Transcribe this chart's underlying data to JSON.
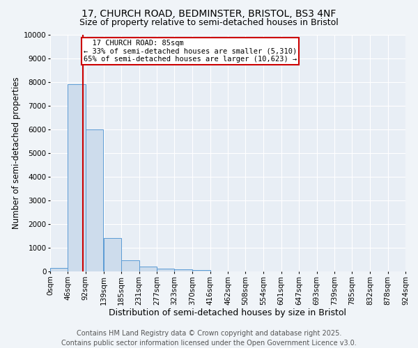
{
  "title_line1": "17, CHURCH ROAD, BEDMINSTER, BRISTOL, BS3 4NF",
  "title_line2": "Size of property relative to semi-detached houses in Bristol",
  "xlabel": "Distribution of semi-detached houses by size in Bristol",
  "ylabel": "Number of semi-detached properties",
  "property_label": "17 CHURCH ROAD: 85sqm",
  "pct_smaller": 33,
  "pct_larger": 65,
  "count_smaller": 5310,
  "count_larger": 10623,
  "bin_edges": [
    0,
    46,
    92,
    139,
    185,
    231,
    277,
    323,
    370,
    416,
    462,
    508,
    554,
    601,
    647,
    693,
    739,
    785,
    832,
    878,
    924
  ],
  "bin_labels": [
    "0sqm",
    "46sqm",
    "92sqm",
    "139sqm",
    "185sqm",
    "231sqm",
    "277sqm",
    "323sqm",
    "370sqm",
    "416sqm",
    "462sqm",
    "508sqm",
    "554sqm",
    "601sqm",
    "647sqm",
    "693sqm",
    "739sqm",
    "785sqm",
    "832sqm",
    "878sqm",
    "924sqm"
  ],
  "bar_heights": [
    150,
    7900,
    6000,
    1400,
    480,
    220,
    130,
    90,
    50,
    10,
    5,
    3,
    2,
    1,
    1,
    0,
    0,
    0,
    0,
    0
  ],
  "bar_color": "#cddcec",
  "bar_edge_color": "#5b9bd5",
  "vline_color": "#cc0000",
  "vline_x": 85,
  "annotation_box_color": "#cc0000",
  "footer_line1": "Contains HM Land Registry data © Crown copyright and database right 2025.",
  "footer_line2": "Contains public sector information licensed under the Open Government Licence v3.0.",
  "ylim": [
    0,
    10000
  ],
  "yticks": [
    0,
    1000,
    2000,
    3000,
    4000,
    5000,
    6000,
    7000,
    8000,
    9000,
    10000
  ],
  "background_color": "#f0f4f8",
  "plot_bg_color": "#e8eef5",
  "grid_color": "#ffffff",
  "title_fontsize": 10,
  "subtitle_fontsize": 9,
  "axis_label_fontsize": 8.5,
  "tick_fontsize": 7.5,
  "annotation_fontsize": 7.5,
  "footer_fontsize": 7
}
